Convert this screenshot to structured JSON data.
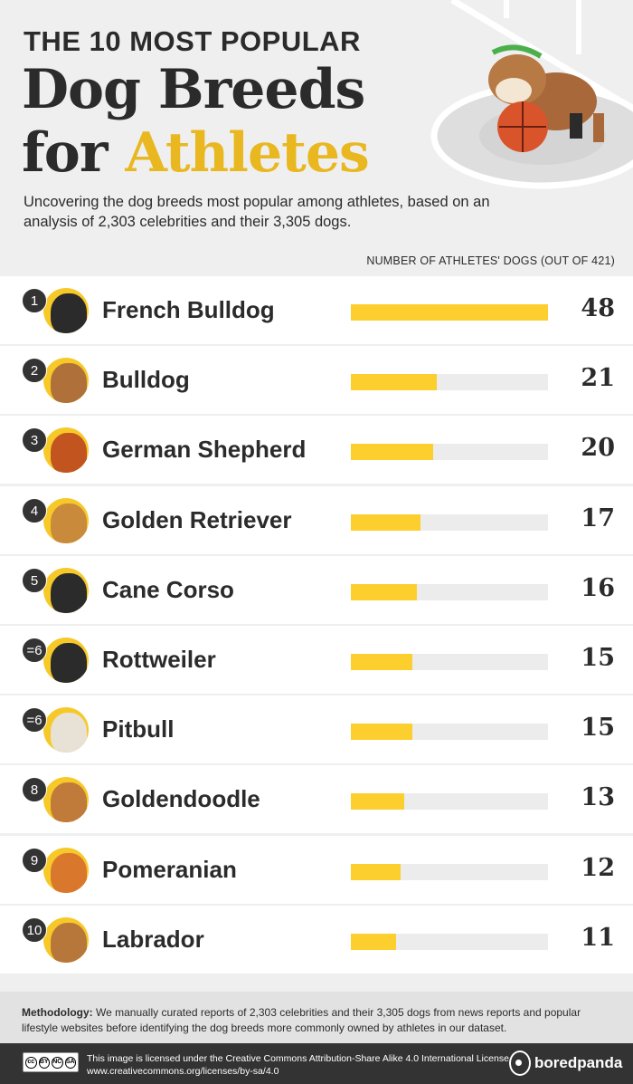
{
  "header": {
    "kicker": "THE 10 MOST POPULAR",
    "title_line1": "Dog Breeds",
    "title_line2_prefix": "for",
    "title_line2_accent": "Athletes",
    "subtitle": "Uncovering the dog breeds most popular among athletes, based on an analysis of 2,303 celebrities and their 3,305 dogs.",
    "accent_color": "#e9b720"
  },
  "chart_data": {
    "type": "bar",
    "orientation": "horizontal",
    "xlabel": "NUMBER OF ATHLETES' DOGS (OUT OF 421)",
    "xlim": [
      0,
      48
    ],
    "bar_color": "#fcce2e",
    "track_color": "#ececec",
    "grid": false,
    "rows": [
      {
        "rank": "1",
        "breed": "French Bulldog",
        "value": 48,
        "icon": "french-bulldog-icon"
      },
      {
        "rank": "2",
        "breed": "Bulldog",
        "value": 21,
        "icon": "bulldog-icon"
      },
      {
        "rank": "3",
        "breed": "German Shepherd",
        "value": 20,
        "icon": "german-shepherd-icon"
      },
      {
        "rank": "4",
        "breed": "Golden Retriever",
        "value": 17,
        "icon": "golden-retriever-icon"
      },
      {
        "rank": "5",
        "breed": "Cane Corso",
        "value": 16,
        "icon": "cane-corso-icon"
      },
      {
        "rank": "=6",
        "breed": "Rottweiler",
        "value": 15,
        "icon": "rottweiler-icon"
      },
      {
        "rank": "=6",
        "breed": "Pitbull",
        "value": 15,
        "icon": "pitbull-icon"
      },
      {
        "rank": "8",
        "breed": "Goldendoodle",
        "value": 13,
        "icon": "goldendoodle-icon"
      },
      {
        "rank": "9",
        "breed": "Pomeranian",
        "value": 12,
        "icon": "pomeranian-icon"
      },
      {
        "rank": "10",
        "breed": "Labrador",
        "value": 11,
        "icon": "labrador-icon"
      }
    ]
  },
  "methodology": {
    "label": "Methodology:",
    "text": " We manually curated reports of 2,303 celebrities and their 3,305 dogs from news reports and popular lifestyle websites before identifying the dog breeds more commonly owned by athletes in our dataset."
  },
  "footer": {
    "license_line1": "This image is licensed under the Creative Commons Attribution-Share Alike 4.0 International License",
    "license_line2": "www.creativecommons.org/licenses/by-sa/4.0",
    "cc_badge": [
      "cc",
      "BY",
      "NC",
      "SA"
    ],
    "brand": "boredpanda"
  }
}
